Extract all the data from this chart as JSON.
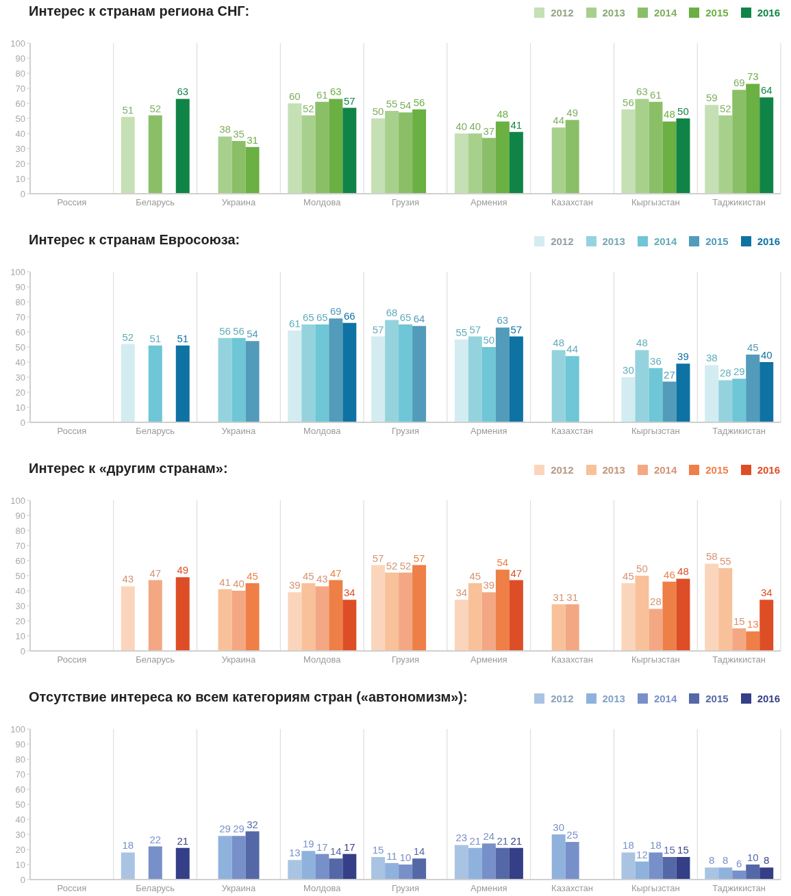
{
  "chart_data": [
    {
      "type": "bar",
      "title": "Интерес к странам региона СНГ:",
      "categories": [
        "Россия",
        "Беларусь",
        "Украина",
        "Молдова",
        "Грузия",
        "Армения",
        "Казахстан",
        "Кыргызстан",
        "Таджикистан"
      ],
      "series": [
        {
          "name": "2012",
          "color": "#c5e0b4",
          "values": [
            null,
            51,
            null,
            60,
            50,
            40,
            null,
            56,
            59
          ]
        },
        {
          "name": "2013",
          "color": "#a8d08d",
          "values": [
            null,
            null,
            38,
            52,
            55,
            40,
            44,
            63,
            52
          ]
        },
        {
          "name": "2014",
          "color": "#8abf68",
          "values": [
            null,
            52,
            35,
            61,
            54,
            37,
            49,
            61,
            69
          ]
        },
        {
          "name": "2015",
          "color": "#6ab042",
          "values": [
            null,
            null,
            31,
            63,
            56,
            48,
            null,
            48,
            73
          ]
        },
        {
          "name": "2016",
          "color": "#108446",
          "values": [
            null,
            63,
            null,
            57,
            null,
            41,
            null,
            50,
            64
          ]
        }
      ],
      "ylim": [
        0,
        100
      ],
      "yticks": [
        0,
        10,
        20,
        30,
        40,
        50,
        60,
        70,
        80,
        90,
        100
      ],
      "grid": "x",
      "legend": "top right",
      "data_labels": true
    },
    {
      "type": "bar",
      "title": "Интерес к странам Евросоюза:",
      "categories": [
        "Россия",
        "Беларусь",
        "Украина",
        "Молдова",
        "Грузия",
        "Армения",
        "Казахстан",
        "Кыргызстан",
        "Таджикистан"
      ],
      "series": [
        {
          "name": "2012",
          "color": "#d3ecf1",
          "values": [
            null,
            52,
            null,
            61,
            57,
            55,
            null,
            30,
            38
          ]
        },
        {
          "name": "2013",
          "color": "#94d3de",
          "values": [
            null,
            null,
            56,
            65,
            68,
            57,
            48,
            48,
            28
          ]
        },
        {
          "name": "2014",
          "color": "#6ec6d6",
          "values": [
            null,
            51,
            56,
            65,
            65,
            50,
            44,
            36,
            29
          ]
        },
        {
          "name": "2015",
          "color": "#529bba",
          "values": [
            null,
            null,
            54,
            69,
            64,
            63,
            null,
            27,
            45
          ]
        },
        {
          "name": "2016",
          "color": "#0e72a3",
          "values": [
            null,
            51,
            null,
            66,
            null,
            57,
            null,
            39,
            40
          ]
        }
      ],
      "ylim": [
        0,
        100
      ],
      "yticks": [
        0,
        10,
        20,
        30,
        40,
        50,
        60,
        70,
        80,
        90,
        100
      ],
      "grid": "x",
      "legend": "top right",
      "data_labels": true
    },
    {
      "type": "bar",
      "title": "Интерес к «другим странам»:",
      "categories": [
        "Россия",
        "Беларусь",
        "Украина",
        "Молдова",
        "Грузия",
        "Армения",
        "Казахстан",
        "Кыргызстан",
        "Таджикистан"
      ],
      "series": [
        {
          "name": "2012",
          "color": "#fbd5bb",
          "values": [
            null,
            43,
            null,
            39,
            57,
            34,
            null,
            45,
            58
          ]
        },
        {
          "name": "2013",
          "color": "#f8c19a",
          "values": [
            null,
            null,
            41,
            45,
            52,
            45,
            31,
            50,
            55
          ]
        },
        {
          "name": "2014",
          "color": "#f3a883",
          "values": [
            null,
            47,
            40,
            43,
            52,
            39,
            31,
            28,
            15
          ]
        },
        {
          "name": "2015",
          "color": "#ee7f46",
          "values": [
            null,
            null,
            45,
            47,
            57,
            54,
            null,
            46,
            13
          ]
        },
        {
          "name": "2016",
          "color": "#dd4e27",
          "values": [
            null,
            49,
            null,
            34,
            null,
            47,
            null,
            48,
            34
          ]
        }
      ],
      "ylim": [
        0,
        100
      ],
      "yticks": [
        0,
        10,
        20,
        30,
        40,
        50,
        60,
        70,
        80,
        90,
        100
      ],
      "grid": "x",
      "legend": "top right",
      "data_labels": true
    },
    {
      "type": "bar",
      "title": "Отсутствие интереса ко всем категориям стран («автономизм»):",
      "categories": [
        "Россия",
        "Беларусь",
        "Украина",
        "Молдова",
        "Грузия",
        "Армения",
        "Казахстан",
        "Кыргызстан",
        "Таджикистан"
      ],
      "series": [
        {
          "name": "2012",
          "color": "#a9c4e2",
          "values": [
            null,
            18,
            null,
            13,
            15,
            23,
            null,
            18,
            8
          ]
        },
        {
          "name": "2013",
          "color": "#8fb2dd",
          "values": [
            null,
            null,
            29,
            19,
            11,
            21,
            30,
            12,
            8
          ]
        },
        {
          "name": "2014",
          "color": "#7890c9",
          "values": [
            null,
            22,
            29,
            17,
            10,
            24,
            25,
            18,
            6
          ]
        },
        {
          "name": "2015",
          "color": "#5468a7",
          "values": [
            null,
            null,
            32,
            14,
            14,
            21,
            null,
            15,
            10
          ]
        },
        {
          "name": "2016",
          "color": "#343f87",
          "values": [
            null,
            21,
            null,
            17,
            null,
            21,
            null,
            15,
            8
          ]
        }
      ],
      "ylim": [
        0,
        100
      ],
      "yticks": [
        0,
        10,
        20,
        30,
        40,
        50,
        60,
        70,
        80,
        90,
        100
      ],
      "grid": "x",
      "legend": "top right",
      "data_labels": true
    }
  ]
}
